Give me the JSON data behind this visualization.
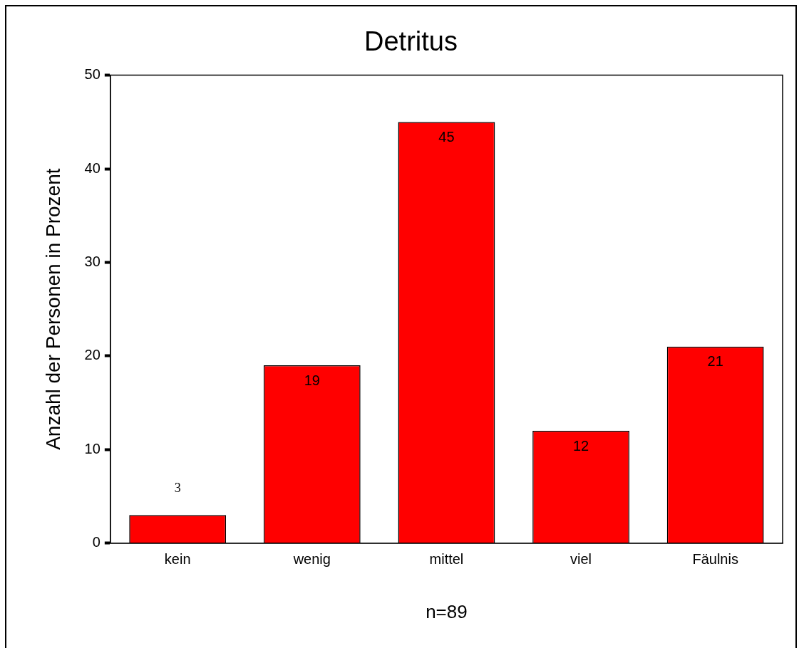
{
  "chart_data": {
    "type": "bar",
    "title": "Detritus",
    "categories": [
      "kein",
      "wenig",
      "mittel",
      "viel",
      "Fäulnis"
    ],
    "values": [
      3,
      19,
      45,
      12,
      21
    ],
    "color": "#ff0000",
    "ylabel": "Anzahl der Personen in Prozent",
    "xlabel": "n=89",
    "ylim": [
      0,
      50
    ],
    "yticks": [
      0,
      10,
      20,
      30,
      40,
      50
    ],
    "data_labels": true,
    "grid": false,
    "legend": false
  }
}
